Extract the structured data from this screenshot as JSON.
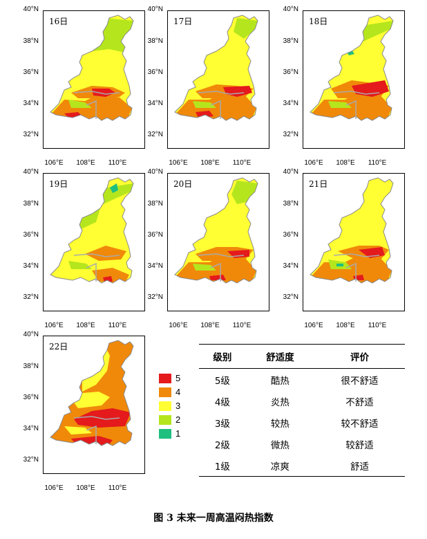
{
  "panels": [
    {
      "day": "16日"
    },
    {
      "day": "17日"
    },
    {
      "day": "18日"
    },
    {
      "day": "19日"
    },
    {
      "day": "20日"
    },
    {
      "day": "21日"
    },
    {
      "day": "22日"
    }
  ],
  "axes": {
    "y_ticks": [
      "40°N",
      "38°N",
      "36°N",
      "34°N",
      "32°N"
    ],
    "x_ticks": [
      "106°E",
      "108°E",
      "110°E"
    ]
  },
  "legend": {
    "items": [
      {
        "label": "5",
        "color": "#e41a1c"
      },
      {
        "label": "4",
        "color": "#f0890a"
      },
      {
        "label": "3",
        "color": "#ffff33"
      },
      {
        "label": "2",
        "color": "#b5e61d"
      },
      {
        "label": "1",
        "color": "#1fbf7f"
      }
    ]
  },
  "table": {
    "headers": [
      "级别",
      "舒适度",
      "评价"
    ],
    "rows": [
      [
        "5级",
        "酷热",
        "很不舒适"
      ],
      [
        "4级",
        "炎热",
        "不舒适"
      ],
      [
        "3级",
        "较热",
        "较不舒适"
      ],
      [
        "2级",
        "微热",
        "较舒适"
      ],
      [
        "1级",
        "凉爽",
        "舒适"
      ]
    ]
  },
  "caption": "图 3  未来一周高温闷热指数"
}
